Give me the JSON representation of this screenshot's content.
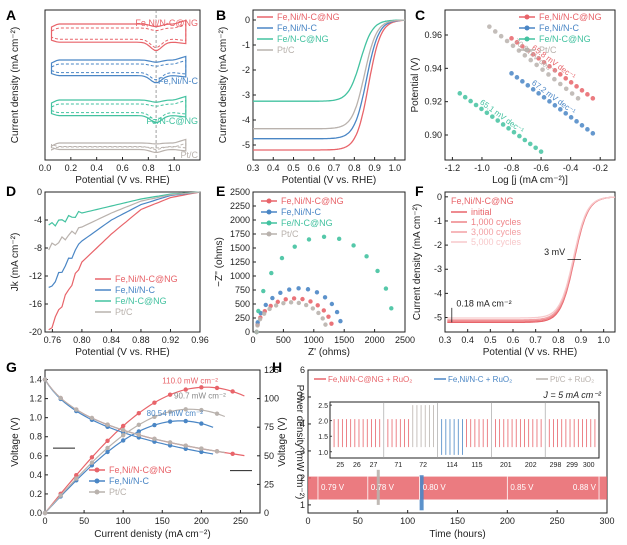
{
  "colors": {
    "red": "#e8646a",
    "blue": "#4a86c5",
    "green": "#43c2a0",
    "gray": "#b9b2ad",
    "pink": "#f2a0a4",
    "lightpink": "#f7c9cb",
    "axis": "#222222"
  },
  "panels": {
    "A": {
      "label": "A",
      "xlabel": "Potential (V vs. RHE)",
      "ylabel": "Current density (mA cm⁻²)",
      "xticks": [
        "0.0",
        "0.2",
        "0.4",
        "0.6",
        "0.8",
        "1.0"
      ],
      "series_labels": [
        "Fe,Ni/N-C@NG",
        "Fe,Ni/N-C",
        "Fe/N-C@NG",
        "Pt/C"
      ]
    },
    "B": {
      "label": "B",
      "xlabel": "Potential (V vs. RHE)",
      "ylabel": "Current density (mA cm⁻²)",
      "legend": [
        "Fe,Ni/N-C@NG",
        "Fe,Ni/N-C",
        "Fe/N-C@NG",
        "Pt/C"
      ]
    },
    "C": {
      "label": "C",
      "xlabel": "Log [j (mA cm⁻²)]",
      "ylabel": "Potential (V)",
      "legend": [
        "Fe,Ni/N-C@NG",
        "Fe,Ni/N-C",
        "Fe/N-C@NG",
        "Pt/C"
      ],
      "slope_labels": [
        "65.8 mV dec⁻¹",
        "70.8 mV dec⁻¹",
        "67.2 mV dec⁻¹",
        "65.1 mV dec⁻¹"
      ]
    },
    "D": {
      "label": "D",
      "xlabel": "Potential (V vs. RHE)",
      "ylabel": "Jk (mA cm⁻²)",
      "legend": [
        "Fe,Ni/N-C@NG",
        "Fe,Ni/N-C",
        "Fe/N-C@NG",
        "Pt/C"
      ]
    },
    "E": {
      "label": "E",
      "xlabel": "Z' (ohms)",
      "ylabel": "−Z'' (ohms)",
      "legend": [
        "Fe,Ni/N-C@NG",
        "Fe,Ni/N-C",
        "Fe/N-C@NG",
        "Pt/C"
      ]
    },
    "F": {
      "label": "F",
      "xlabel": "Potential (V vs. RHE)",
      "ylabel": "Current density (mA cm⁻²)",
      "legend_title": "Fe,Ni/N-C@NG",
      "legend": [
        "initial",
        "1,000 cycles",
        "3,000 cycles",
        "5,000 cycles"
      ],
      "annot_shift": "3 mV",
      "annot_current": "0.18 mA cm⁻²"
    },
    "G": {
      "label": "G",
      "xlabel": "Current denisty (mA cm⁻²)",
      "ylabel": "Voltage (V)",
      "y2label": "Power density (mW cm⁻²)",
      "legend": [
        "Fe,Ni/N-C@NG",
        "Fe,Ni/N-C",
        "Pt/C"
      ],
      "peak_labels": [
        "110.0 mW cm⁻²",
        "90.7 mW cm⁻²",
        "80.54 mW cm⁻²"
      ]
    },
    "H": {
      "label": "H",
      "xlabel": "Time (hours)",
      "ylabel": "Voltage (V)",
      "legend": [
        "Fe,Ni/N-C@NG + RuO₂",
        "Fe,Ni/N-C + RuO₂",
        "Pt/C + RuO₂"
      ],
      "current_label": "J = 5 mA cm⁻²",
      "gap_labels": [
        "0.79 V",
        "0.78 V",
        "0.80 V",
        "0.85 V",
        "0.88 V"
      ],
      "inset_xticks": [
        "25",
        "26",
        "27",
        "71",
        "72",
        "114",
        "115",
        "201",
        "202",
        "298",
        "299",
        "300"
      ]
    }
  },
  "chart_data": [
    {
      "panel": "A",
      "type": "line",
      "title": "",
      "xlabel": "Potential (V vs. RHE)",
      "ylabel": "Current density (mA cm⁻²)",
      "xlim": [
        0,
        1.2
      ],
      "series": [
        {
          "name": "Fe,Ni/N-C@NG",
          "kind": "CV solid + dashed"
        },
        {
          "name": "Fe,Ni/N-C",
          "kind": "CV solid + dashed"
        },
        {
          "name": "Fe/N-C@NG",
          "kind": "CV solid + dashed"
        },
        {
          "name": "Pt/C",
          "kind": "CV solid + dashed"
        }
      ]
    },
    {
      "panel": "B",
      "type": "line",
      "xlabel": "Potential (V vs. RHE)",
      "ylabel": "Current density (mA cm⁻²)",
      "xlim": [
        0.3,
        1.05
      ],
      "ylim": [
        -5.6,
        0.4
      ],
      "xticks": [
        0.3,
        0.4,
        0.5,
        0.6,
        0.7,
        0.8,
        0.9,
        1.0
      ],
      "yticks": [
        0,
        -1,
        -2,
        -3,
        -4,
        -5
      ],
      "series": [
        {
          "name": "Fe,Ni/N-C@NG",
          "limiting_current": -5.2,
          "half_wave": 0.87
        },
        {
          "name": "Fe,Ni/N-C",
          "limiting_current": -4.75,
          "half_wave": 0.86
        },
        {
          "name": "Fe/N-C@NG",
          "limiting_current": -3.25,
          "half_wave": 0.83
        },
        {
          "name": "Pt/C",
          "limiting_current": -4.35,
          "half_wave": 0.85
        }
      ]
    },
    {
      "panel": "C",
      "type": "scatter",
      "xlabel": "Log [j (mA cm⁻²)]",
      "ylabel": "Potential (V)",
      "xlim": [
        -1.25,
        -0.1
      ],
      "ylim": [
        0.885,
        0.975
      ],
      "xticks": [
        -1.2,
        -1.0,
        -0.8,
        -0.6,
        -0.4,
        -0.2
      ],
      "yticks": [
        0.9,
        0.92,
        0.94,
        0.96
      ],
      "series": [
        {
          "name": "Fe,Ni/N-C@NG",
          "x": [
            -0.8,
            -0.25
          ],
          "y": [
            0.958,
            0.922
          ],
          "tafel_slope": "65.8 mV dec⁻¹"
        },
        {
          "name": "Pt/C",
          "x": [
            -0.95,
            -0.35
          ],
          "y": [
            0.965,
            0.922
          ],
          "tafel_slope": "70.8 mV dec⁻¹"
        },
        {
          "name": "Fe,Ni/N-C",
          "x": [
            -0.8,
            -0.25
          ],
          "y": [
            0.937,
            0.901
          ],
          "tafel_slope": "67.2 mV dec⁻¹"
        },
        {
          "name": "Fe/N-C@NG",
          "x": [
            -1.15,
            -0.6
          ],
          "y": [
            0.925,
            0.89
          ],
          "tafel_slope": "65.1 mV dec⁻¹"
        }
      ]
    },
    {
      "panel": "D",
      "type": "line",
      "xlabel": "Potential (V vs. RHE)",
      "ylabel": "Jk (mA cm⁻²)",
      "xlim": [
        0.75,
        0.96
      ],
      "ylim": [
        -20,
        0
      ],
      "xticks": [
        0.76,
        0.8,
        0.84,
        0.88,
        0.92,
        0.96
      ],
      "yticks": [
        0,
        -4,
        -8,
        -12,
        -16,
        -20
      ],
      "series": [
        {
          "name": "Fe,Ni/N-C@NG",
          "x": [
            0.755,
            0.8,
            0.84,
            0.88,
            0.92,
            0.96
          ],
          "y": [
            -20,
            -10,
            -6,
            -2.5,
            -0.8,
            0
          ]
        },
        {
          "name": "Fe,Ni/N-C",
          "x": [
            0.755,
            0.8,
            0.84,
            0.88,
            0.92,
            0.96
          ],
          "y": [
            -14,
            -7,
            -4,
            -1.8,
            -0.5,
            0
          ]
        },
        {
          "name": "Fe/N-C@NG",
          "x": [
            0.755,
            0.8,
            0.84,
            0.88,
            0.92,
            0.96
          ],
          "y": [
            -4.8,
            -3,
            -2,
            -1,
            -0.3,
            0
          ]
        },
        {
          "name": "Pt/C",
          "x": [
            0.755,
            0.8,
            0.84,
            0.88,
            0.92,
            0.96
          ],
          "y": [
            -8,
            -5,
            -3,
            -1.3,
            -0.4,
            0
          ]
        }
      ]
    },
    {
      "panel": "E",
      "type": "scatter",
      "xlabel": "Z' (ohms)",
      "ylabel": "−Z'' (ohms)",
      "xlim": [
        0,
        2500
      ],
      "ylim": [
        0,
        2500
      ],
      "xticks": [
        0,
        500,
        1000,
        1500,
        2000,
        2500
      ],
      "yticks": [
        0,
        250,
        500,
        750,
        1000,
        1250,
        1500,
        1750,
        2000,
        2250,
        2500
      ],
      "series": [
        {
          "name": "Fe,Ni/N-C@NG",
          "arc_end": 1250,
          "peak": 600
        },
        {
          "name": "Fe,Ni/N-C",
          "arc_end": 1400,
          "peak": 780
        },
        {
          "name": "Fe/N-C@NG",
          "arc_end": 2250,
          "peak": 1700
        },
        {
          "name": "Pt/C",
          "arc_end": 1150,
          "peak": 530
        }
      ]
    },
    {
      "panel": "F",
      "type": "line",
      "xlabel": "Potential (V vs. RHE)",
      "ylabel": "Current density (mA cm⁻²)",
      "xlim": [
        0.3,
        1.05
      ],
      "ylim": [
        -5.6,
        0.2
      ],
      "xticks": [
        0.3,
        0.4,
        0.5,
        0.6,
        0.7,
        0.8,
        0.9,
        1.0
      ],
      "yticks": [
        0,
        -1,
        -2,
        -3,
        -4,
        -5
      ],
      "series": [
        {
          "name": "initial",
          "limiting_current": -5.2
        },
        {
          "name": "1,000 cycles",
          "limiting_current": -5.15
        },
        {
          "name": "3,000 cycles",
          "limiting_current": -5.1
        },
        {
          "name": "5,000 cycles",
          "limiting_current": -5.02
        }
      ],
      "half_wave_shift_mV": 3,
      "limiting_current_loss": "0.18 mA cm⁻²"
    },
    {
      "panel": "G",
      "type": "line",
      "xlabel": "Current denisty (mA cm⁻²)",
      "ylabel": "Voltage (V)",
      "y2label": "Power density (mW cm⁻²)",
      "xlim": [
        0,
        275
      ],
      "ylim": [
        0,
        1.5
      ],
      "y2lim": [
        0,
        125
      ],
      "xticks": [
        0,
        50,
        100,
        150,
        200,
        250
      ],
      "yticks": [
        0,
        0.2,
        0.4,
        0.6,
        0.8,
        1.0,
        1.2,
        1.4
      ],
      "y2ticks": [
        0,
        25,
        50,
        75,
        100,
        125
      ],
      "series": [
        {
          "name": "Fe,Ni/N-C@NG",
          "max_current": 255,
          "peak_power": 110.0
        },
        {
          "name": "Fe,Ni/N-C",
          "max_current": 215,
          "peak_power": 80.54
        },
        {
          "name": "Pt/C",
          "max_current": 230,
          "peak_power": 90.7
        }
      ]
    },
    {
      "panel": "H",
      "type": "line",
      "xlabel": "Time (hours)",
      "ylabel": "Voltage (V)",
      "xlim": [
        0,
        300
      ],
      "ylim": [
        0,
        6
      ],
      "xticks": [
        0,
        50,
        100,
        150,
        200,
        250,
        300
      ],
      "yticks": [
        1,
        2,
        3,
        4,
        5,
        6
      ],
      "current_density": "5 mA cm⁻²",
      "series": [
        {
          "name": "Fe,Ni/N-C@NG + RuO₂",
          "duration_h": 300,
          "voltage_gap": [
            0.79,
            0.78,
            0.8,
            0.85,
            0.88
          ]
        },
        {
          "name": "Fe,Ni/N-C + RuO₂",
          "duration_h": 115
        },
        {
          "name": "Pt/C + RuO₂",
          "duration_h": 72
        }
      ]
    }
  ]
}
